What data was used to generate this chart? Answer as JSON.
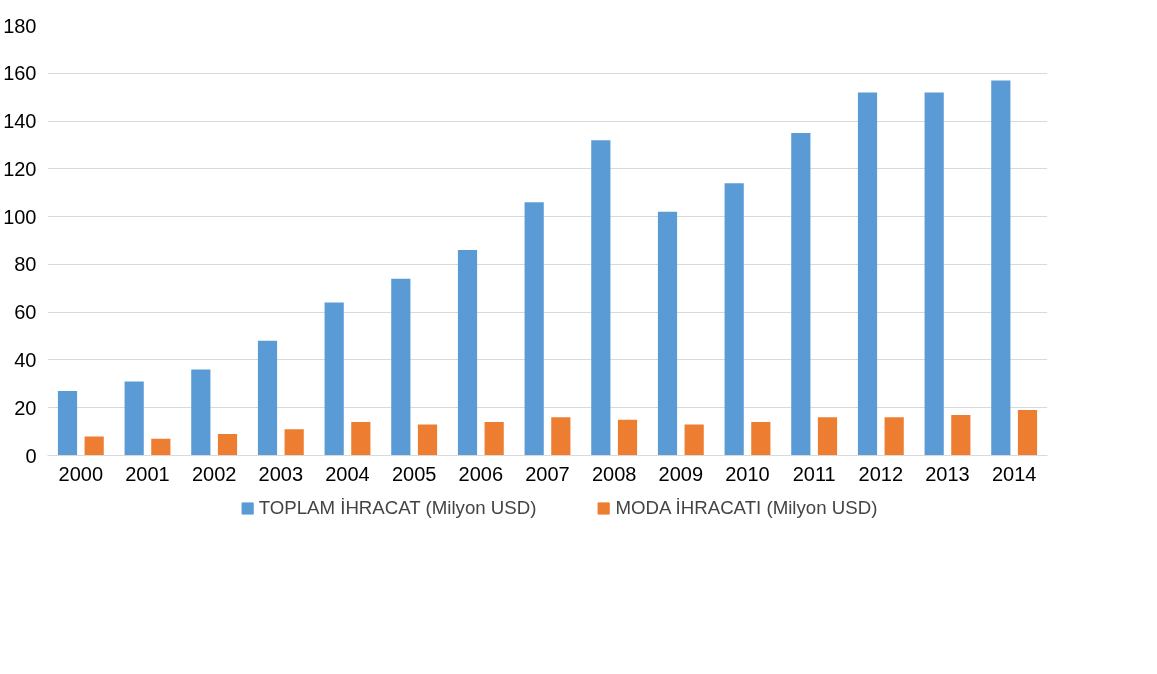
{
  "chart_data": {
    "type": "bar",
    "categories": [
      "2000",
      "2001",
      "2002",
      "2003",
      "2004",
      "2005",
      "2006",
      "2007",
      "2008",
      "2009",
      "2010",
      "2011",
      "2012",
      "2013",
      "2014"
    ],
    "series": [
      {
        "name": "TOPLAM İHRACAT (Milyon USD)",
        "color": "#5b9bd5",
        "values": [
          27,
          31,
          36,
          48,
          64,
          74,
          86,
          106,
          132,
          102,
          114,
          135,
          152,
          152,
          157
        ]
      },
      {
        "name": "MODA İHRACATI (Milyon USD)",
        "color": "#ed7d31",
        "values": [
          8,
          7,
          9,
          11,
          14,
          13,
          14,
          16,
          15,
          13,
          14,
          16,
          16,
          17,
          19
        ]
      }
    ],
    "ylim": [
      0,
      180
    ],
    "yticks": [
      0,
      20,
      40,
      60,
      80,
      100,
      120,
      140,
      160,
      180
    ],
    "grid": "y",
    "legend": "bottom"
  }
}
